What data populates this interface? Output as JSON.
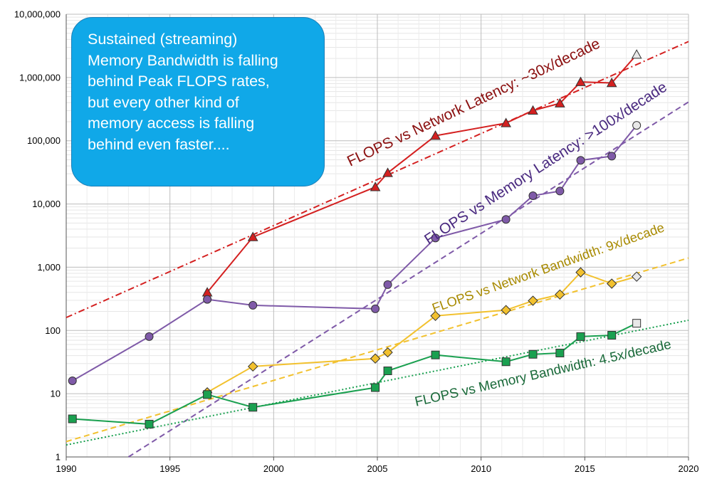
{
  "callout": {
    "lines": [
      "Sustained (streaming)",
      "Memory Bandwidth is falling",
      "behind Peak FLOPS rates,",
      "but every other kind of",
      "memory access is falling",
      "behind even faster...."
    ]
  },
  "chart_data": {
    "type": "line",
    "xlim": [
      1990,
      2020
    ],
    "ylim": [
      1,
      10000000
    ],
    "y_scale": "log",
    "grid": true,
    "x_ticks": [
      "1990",
      "1995",
      "2000",
      "2005",
      "2010",
      "2015",
      "2020"
    ],
    "y_ticks": [
      "1",
      "10",
      "100",
      "1,000",
      "10,000",
      "100,000",
      "1,000,000",
      "10,000,000"
    ],
    "colors": {
      "network_latency": "#d42020",
      "memory_latency": "#7f5aa8",
      "network_bandwidth": "#f2c12e",
      "memory_bandwidth": "#1aa050",
      "network_latency_label": "#8b1010",
      "memory_latency_label": "#4a2a80",
      "network_bandwidth_label": "#a88a00",
      "memory_bandwidth_label": "#1a6a3a",
      "callout_bg": "#10a8e8"
    },
    "series": [
      {
        "key": "network_latency",
        "marker": "triangle",
        "points": [
          [
            1996.8,
            400
          ],
          [
            1999,
            3000
          ],
          [
            2004.9,
            18500
          ],
          [
            2005.5,
            31000
          ],
          [
            2007.8,
            120000
          ],
          [
            2011.2,
            190000
          ],
          [
            2012.5,
            300000
          ],
          [
            2013.8,
            390000
          ],
          [
            2014.8,
            850000
          ],
          [
            2016.3,
            820000
          ],
          [
            2017.5,
            2300000
          ]
        ]
      },
      {
        "key": "memory_latency",
        "marker": "circle",
        "points": [
          [
            1990.3,
            16
          ],
          [
            1994,
            80
          ],
          [
            1996.8,
            310
          ],
          [
            1999,
            250
          ],
          [
            2004.9,
            220
          ],
          [
            2005.5,
            530
          ],
          [
            2007.8,
            2900
          ],
          [
            2011.2,
            5700
          ],
          [
            2012.5,
            13500
          ],
          [
            2013.8,
            16000
          ],
          [
            2014.8,
            49000
          ],
          [
            2016.3,
            57000
          ],
          [
            2017.5,
            175000
          ]
        ]
      },
      {
        "key": "network_bandwidth",
        "marker": "diamond",
        "points": [
          [
            1996.8,
            10.5
          ],
          [
            1999,
            27
          ],
          [
            2004.9,
            36
          ],
          [
            2005.5,
            45
          ],
          [
            2007.8,
            170
          ],
          [
            2011.2,
            210
          ],
          [
            2012.5,
            295
          ],
          [
            2013.8,
            370
          ],
          [
            2014.8,
            830
          ],
          [
            2016.3,
            550
          ],
          [
            2017.5,
            710
          ]
        ]
      },
      {
        "key": "memory_bandwidth",
        "marker": "square",
        "points": [
          [
            1990.3,
            4
          ],
          [
            1994,
            3.3
          ],
          [
            1996.8,
            9.7
          ],
          [
            1999,
            6.1
          ],
          [
            2004.9,
            12.5
          ],
          [
            2005.5,
            23
          ],
          [
            2007.8,
            41
          ],
          [
            2011.2,
            32
          ],
          [
            2012.5,
            42
          ],
          [
            2013.8,
            44
          ],
          [
            2014.8,
            80
          ],
          [
            2016.3,
            84
          ],
          [
            2017.5,
            130
          ]
        ]
      }
    ],
    "trendlines": [
      {
        "key": "network_latency",
        "style": "dashdot",
        "from": [
          1990,
          160
        ],
        "to": [
          2020,
          3700000
        ],
        "label": "FLOPS vs Network Latency: ~30x/decade"
      },
      {
        "key": "memory_latency",
        "style": "dashed",
        "from": [
          1993,
          1
        ],
        "to": [
          2020,
          410000
        ],
        "label": "FLOPS vs Memory Latency: >100x/decade"
      },
      {
        "key": "network_bandwidth",
        "style": "dashed",
        "from": [
          1990,
          1.75
        ],
        "to": [
          2020,
          1400
        ],
        "label": "FLOPS vs Network Bandwidth: 9x/decade"
      },
      {
        "key": "memory_bandwidth",
        "style": "dotted",
        "from": [
          1990,
          1.55
        ],
        "to": [
          2020,
          145
        ],
        "label": "FLOPS vs Memory Bandwidth: 4.5x/decade"
      }
    ]
  }
}
